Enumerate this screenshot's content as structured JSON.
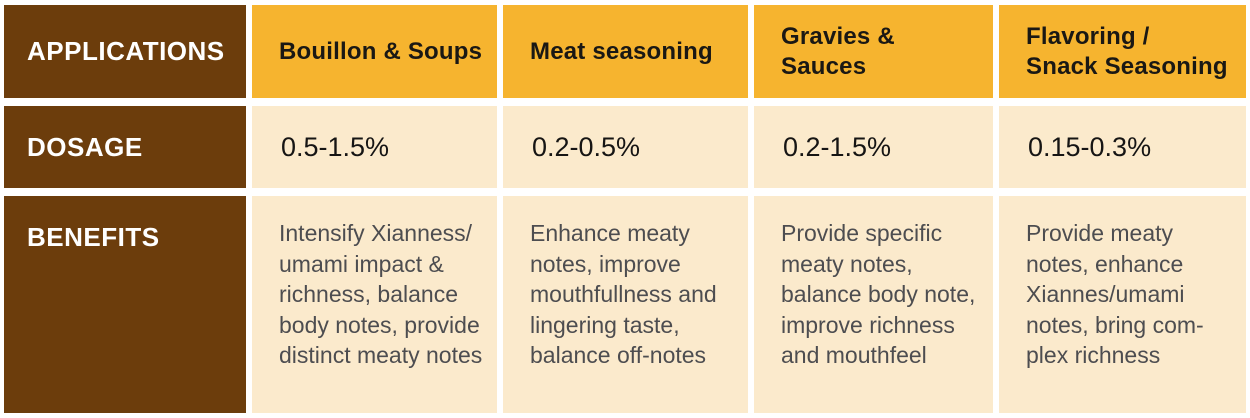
{
  "row_headers": {
    "applications": "APPLICATIONS",
    "dosage": "DOSAGE",
    "benefits": "BENEFITS"
  },
  "columns": [
    {
      "application": "Bouillon & Soups",
      "dosage": "0.5-1.5%",
      "benefits": "Intensify Xianness/\numami impact &\nrichness, balance\nbody notes, provide\ndistinct meaty notes"
    },
    {
      "application": "Meat seasoning",
      "dosage": "0.2-0.5%",
      "benefits": "Enhance meaty\nnotes, improve\nmouthfullness and\nlingering taste,\nbalance off-notes"
    },
    {
      "application": "Gravies & Sauces",
      "dosage": "0.2-1.5%",
      "benefits": "Provide specific\nmeaty notes,\nbalance body note,\nimprove richness\nand mouthfeel"
    },
    {
      "application": "Flavoring /\nSnack Seasoning",
      "dosage": "0.15-0.3%",
      "benefits": "Provide meaty\nnotes, enhance\nXiannes/umami\nnotes, bring com-\nplex richness"
    }
  ],
  "colors": {
    "header_brown": "#6C3D0C",
    "application_orange": "#F6B42F",
    "cell_cream": "#FBEACC",
    "header_text": "#FFFFFF",
    "application_text": "#1A1814",
    "benefit_text": "#4D4D50"
  }
}
